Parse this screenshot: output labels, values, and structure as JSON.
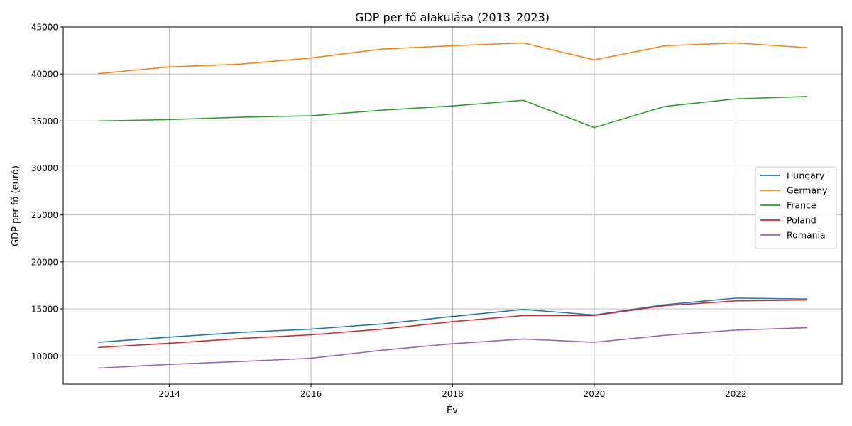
{
  "chart_data": {
    "type": "line",
    "title": "GDP per fő alakulása (2013–2023)",
    "xlabel": "Év",
    "ylabel": "GDP per fő (euró)",
    "x": [
      2013,
      2014,
      2015,
      2016,
      2017,
      2018,
      2019,
      2020,
      2021,
      2022,
      2023
    ],
    "xlim": [
      2012.5,
      2023.5
    ],
    "ylim": [
      7000,
      45000
    ],
    "xticks": [
      2014,
      2016,
      2018,
      2020,
      2022
    ],
    "yticks": [
      10000,
      15000,
      20000,
      25000,
      30000,
      35000,
      40000,
      45000
    ],
    "grid": true,
    "legend_position": "center-right",
    "series": [
      {
        "name": "Hungary",
        "color": "#1f77b4",
        "values": [
          11450,
          12000,
          12500,
          12850,
          13400,
          14200,
          14950,
          14350,
          15450,
          16150,
          16050
        ]
      },
      {
        "name": "Germany",
        "color": "#ff7f0e",
        "values": [
          40050,
          40750,
          41050,
          41700,
          42650,
          43000,
          43300,
          41500,
          43000,
          43300,
          42800
        ]
      },
      {
        "name": "France",
        "color": "#2ca02c",
        "values": [
          35000,
          35150,
          35400,
          35550,
          36150,
          36600,
          37200,
          34300,
          36550,
          37350,
          37600
        ]
      },
      {
        "name": "Poland",
        "color": "#d62728",
        "values": [
          10900,
          11350,
          11850,
          12250,
          12850,
          13650,
          14300,
          14300,
          15350,
          15850,
          15950
        ]
      },
      {
        "name": "Romania",
        "color": "#9467bd",
        "values": [
          8700,
          9100,
          9400,
          9750,
          10600,
          11300,
          11800,
          11450,
          12200,
          12750,
          13000
        ]
      }
    ]
  }
}
